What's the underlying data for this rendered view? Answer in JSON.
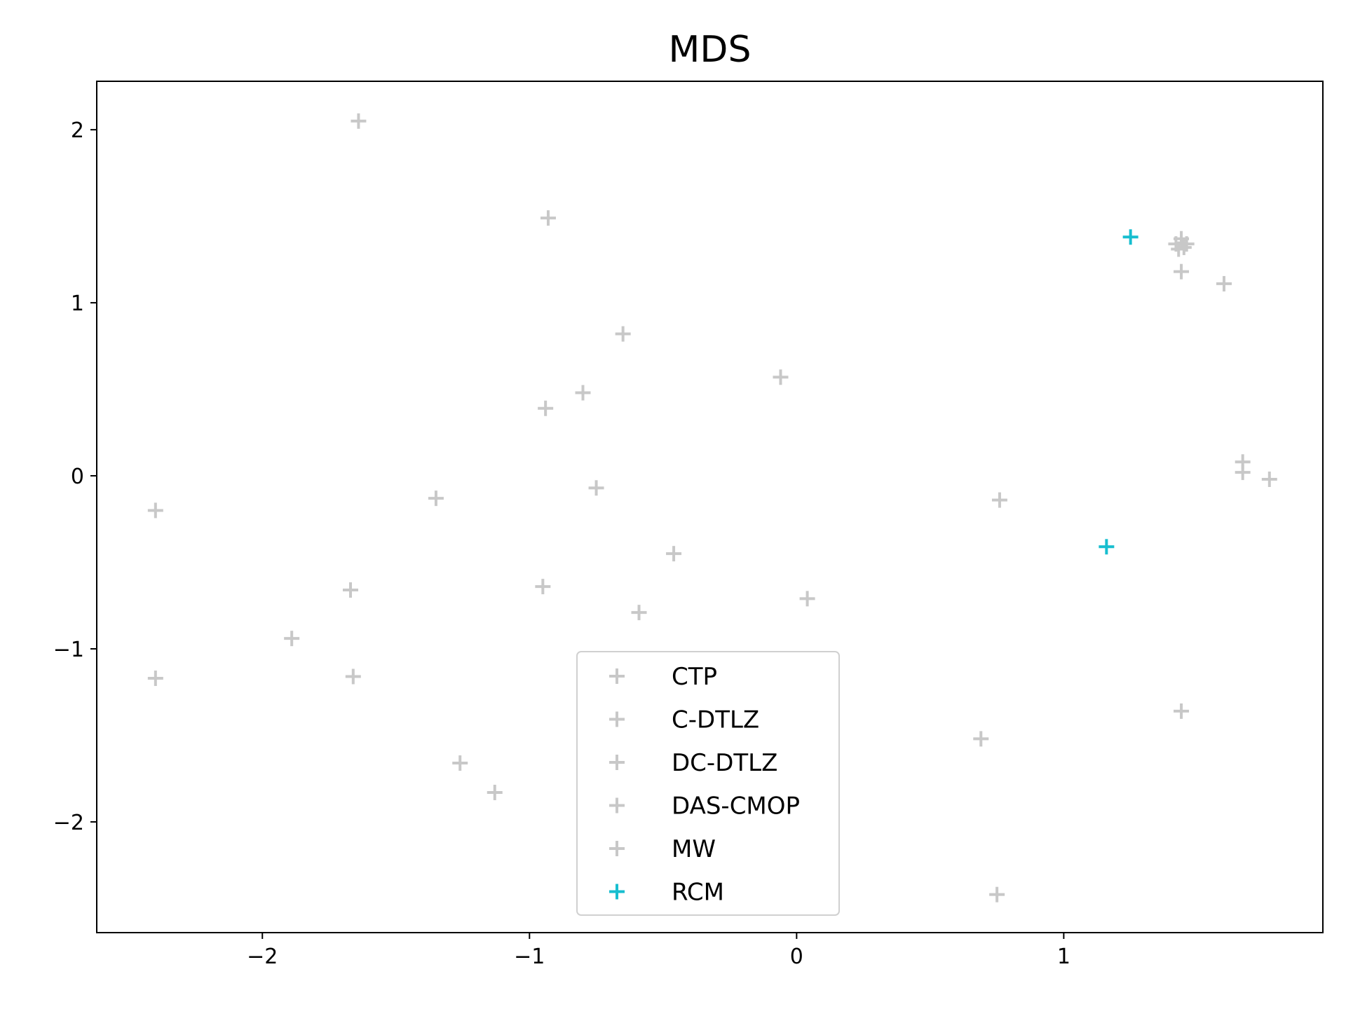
{
  "chart_data": {
    "type": "scatter",
    "title": "MDS",
    "xlabel": "",
    "ylabel": "",
    "xlim": [
      -2.62,
      1.97
    ],
    "ylim": [
      -2.64,
      2.28
    ],
    "xticks": [
      -2,
      -1,
      0,
      1
    ],
    "xtick_labels": [
      "−2",
      "−1",
      "0",
      "1"
    ],
    "yticks": [
      -2,
      -1,
      0,
      1,
      2
    ],
    "ytick_labels": [
      "−2",
      "−1",
      "0",
      "1",
      "2"
    ],
    "grid": false,
    "legend_position": "lower center",
    "marker": "+",
    "series": [
      {
        "name": "CTP",
        "color": "#c8c8c8",
        "points": [
          [
            -1.64,
            2.05
          ],
          [
            -0.93,
            1.49
          ],
          [
            -0.65,
            0.82
          ],
          [
            -0.06,
            0.57
          ],
          [
            -0.94,
            0.39
          ],
          [
            -0.8,
            0.48
          ]
        ]
      },
      {
        "name": "C-DTLZ",
        "color": "#c8c8c8",
        "points": [
          [
            -2.4,
            -0.2
          ],
          [
            -1.35,
            -0.13
          ],
          [
            -0.75,
            -0.07
          ],
          [
            -0.46,
            -0.45
          ],
          [
            -1.67,
            -0.66
          ],
          [
            -0.95,
            -0.64
          ]
        ]
      },
      {
        "name": "DC-DTLZ",
        "color": "#c8c8c8",
        "points": [
          [
            -0.59,
            -0.79
          ],
          [
            0.04,
            -0.71
          ],
          [
            -1.89,
            -0.94
          ],
          [
            -2.4,
            -1.17
          ],
          [
            -1.66,
            -1.16
          ],
          [
            -1.26,
            -1.66
          ],
          [
            -1.13,
            -1.83
          ]
        ]
      },
      {
        "name": "DAS-CMOP",
        "color": "#c8c8c8",
        "points": [
          [
            1.42,
            1.34
          ],
          [
            1.44,
            1.37
          ],
          [
            1.45,
            1.32
          ],
          [
            1.46,
            1.34
          ],
          [
            1.43,
            1.31
          ],
          [
            1.44,
            1.18
          ],
          [
            1.6,
            1.11
          ]
        ]
      },
      {
        "name": "MW",
        "color": "#c8c8c8",
        "points": [
          [
            1.67,
            0.08
          ],
          [
            1.67,
            0.02
          ],
          [
            1.77,
            -0.02
          ],
          [
            0.76,
            -0.14
          ],
          [
            0.69,
            -1.52
          ],
          [
            1.44,
            -1.36
          ],
          [
            0.75,
            -2.42
          ]
        ]
      },
      {
        "name": "RCM",
        "color": "#17becf",
        "points": [
          [
            1.25,
            1.38
          ],
          [
            1.16,
            -0.41
          ]
        ]
      }
    ]
  }
}
